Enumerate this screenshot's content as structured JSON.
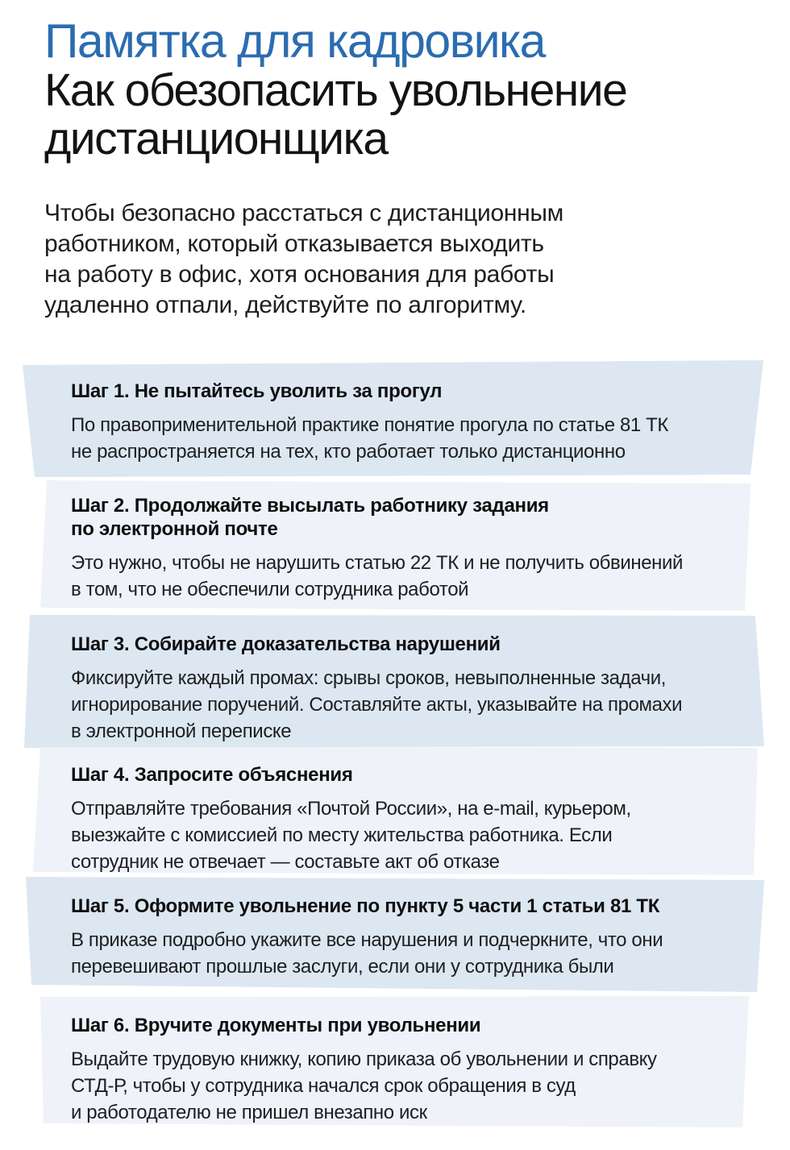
{
  "document": {
    "kicker": "Памятка для кадровика",
    "title": "Как обезопасить увольнение\nдистанционщика",
    "intro": "Чтобы безопасно расстаться с дистанционным\nработником, который отказывается выходить\nна работу в офис, хотя основания для работы\nудаленно отпали, действуйте по алгоритму."
  },
  "colors": {
    "kicker_blue": "#2b6cb0",
    "card_tint_strong": "#dce7f2",
    "card_tint_light": "#eff2f9",
    "heading_text": "#0f0f10",
    "body_text": "#1e1e20"
  },
  "steps": [
    {
      "heading": "Шаг 1. Не пытайтесь уволить за прогул",
      "body": "По правоприменительной практике понятие прогула по статье 81 ТК\nне распространяется на тех, кто работает только дистанционно"
    },
    {
      "heading": "Шаг 2. Продолжайте высылать работнику задания\nпо электронной почте",
      "body": "Это нужно, чтобы не нарушить статью 22 ТК и не получить обвинений\nв том, что не обеспечили сотрудника работой"
    },
    {
      "heading": "Шаг 3. Собирайте доказательства нарушений",
      "body": "Фиксируйте каждый промах: срывы сроков, невыполненные задачи,\nигнорирование поручений. Составляйте акты, указывайте на промахи\nв электронной переписке"
    },
    {
      "heading": "Шаг 4. Запросите объяснения",
      "body": "Отправляйте требования «Почтой России», на e-mail, курьером,\nвыезжайте с комиссией по месту жительства работника. Если\nсотрудник не отвечает — составьте акт об отказе"
    },
    {
      "heading": "Шаг 5. Оформите увольнение по пункту 5 части 1 статьи 81 ТК",
      "body": "В приказе подробно укажите все нарушения и подчеркните, что они\nперевешивают прошлые заслуги, если они у сотрудника были"
    },
    {
      "heading": "Шаг 6. Вручите документы при увольнении",
      "body": "Выдайте трудовую книжку, копию приказа об увольнении и справку\nСТД-Р, чтобы у сотрудника начался срок обращения в суд\nи работодателю не пришел внезапно иск"
    }
  ]
}
